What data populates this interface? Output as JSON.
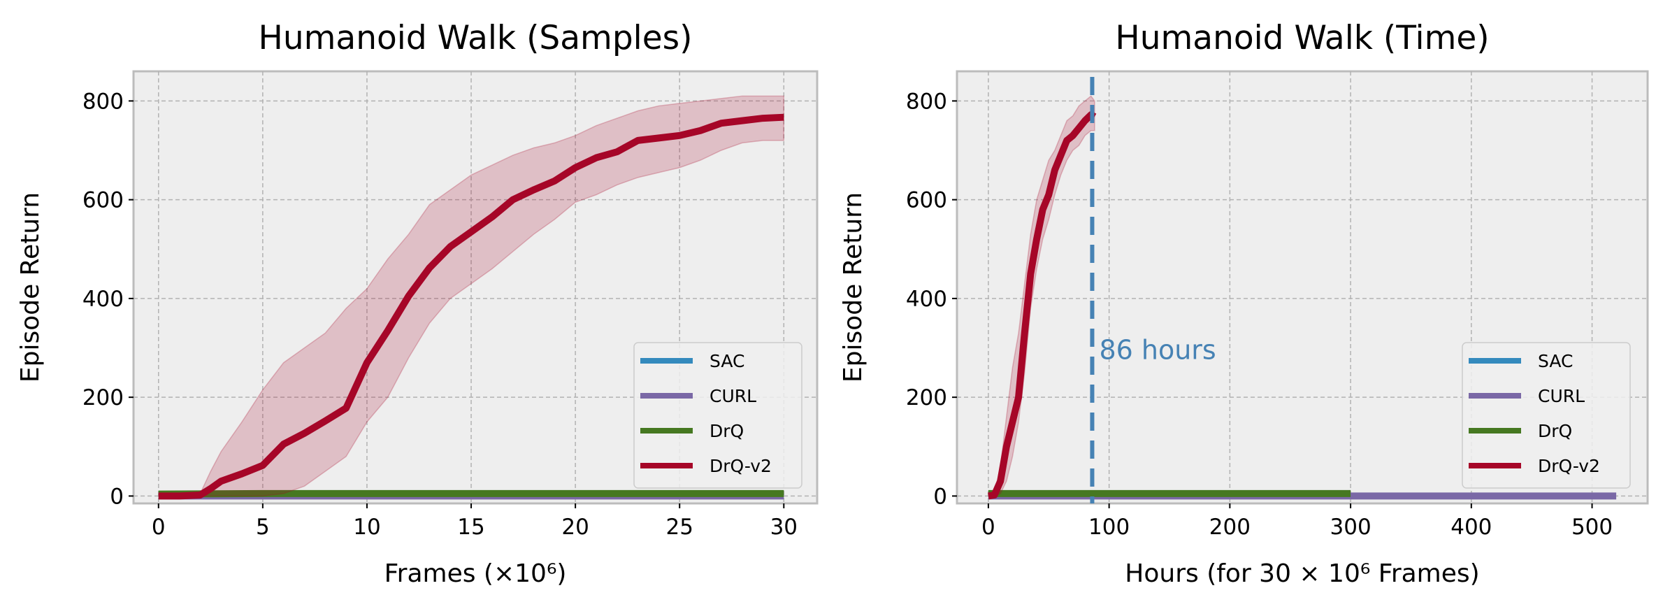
{
  "chart_data": [
    {
      "type": "line",
      "title": "Humanoid Walk (Samples)",
      "xlabel": "Frames (×10⁶)",
      "ylabel": "Episode Return",
      "xlim": [
        -1.2,
        31.6
      ],
      "ylim": [
        -15,
        860
      ],
      "xticks": [
        0,
        5,
        10,
        15,
        20,
        25,
        30
      ],
      "yticks": [
        0,
        200,
        400,
        600,
        800
      ],
      "grid": true,
      "legend_position": "lower-right",
      "legend": [
        "SAC",
        "CURL",
        "DrQ",
        "DrQ-v2"
      ],
      "series": [
        {
          "name": "SAC",
          "color": "#348ABD",
          "x": [],
          "y": []
        },
        {
          "name": "CURL",
          "color": "#7A68A6",
          "x": [
            0,
            30
          ],
          "y": [
            0,
            0
          ]
        },
        {
          "name": "DrQ",
          "color": "#467821",
          "x": [
            0,
            5,
            10,
            15,
            20,
            25,
            30
          ],
          "y": [
            4,
            5,
            5,
            5,
            5,
            5,
            5
          ]
        },
        {
          "name": "DrQ-v2",
          "color": "#A60628",
          "x": [
            0,
            1,
            2,
            2.5,
            3,
            4,
            5,
            6,
            7,
            8,
            9,
            10,
            11,
            12,
            13,
            14,
            15,
            16,
            17,
            18,
            19,
            20,
            21,
            22,
            23,
            24,
            25,
            26,
            27,
            28,
            29,
            30
          ],
          "y": [
            0,
            0,
            2,
            15,
            30,
            45,
            62,
            105,
            127,
            152,
            178,
            270,
            335,
            405,
            462,
            505,
            535,
            565,
            600,
            620,
            638,
            665,
            685,
            697,
            720,
            725,
            730,
            740,
            755,
            760,
            765,
            767
          ],
          "upper": [
            2,
            2,
            5,
            50,
            90,
            150,
            215,
            270,
            300,
            330,
            380,
            420,
            480,
            530,
            590,
            620,
            650,
            670,
            690,
            705,
            715,
            730,
            750,
            765,
            780,
            790,
            795,
            800,
            805,
            810,
            810,
            810
          ],
          "lower": [
            0,
            0,
            0,
            0,
            0,
            0,
            0,
            5,
            20,
            50,
            80,
            150,
            200,
            280,
            350,
            400,
            430,
            460,
            495,
            530,
            560,
            595,
            610,
            630,
            645,
            655,
            665,
            680,
            700,
            715,
            720,
            720
          ]
        }
      ]
    },
    {
      "type": "line",
      "title": "Humanoid Walk (Time)",
      "xlabel": "Hours (for 30 × 10⁶ Frames)",
      "ylabel": "Episode Return",
      "xlim": [
        -26,
        546
      ],
      "ylim": [
        -15,
        860
      ],
      "xticks": [
        0,
        100,
        200,
        300,
        400,
        500
      ],
      "yticks": [
        0,
        200,
        400,
        600,
        800
      ],
      "grid": true,
      "legend_position": "lower-right",
      "legend": [
        "SAC",
        "CURL",
        "DrQ",
        "DrQ-v2"
      ],
      "annotation": {
        "text": "86 hours",
        "x": 86,
        "color": "#4682B4"
      },
      "series": [
        {
          "name": "SAC",
          "color": "#348ABD",
          "x": [],
          "y": []
        },
        {
          "name": "CURL",
          "color": "#7A68A6",
          "x": [
            0,
            520
          ],
          "y": [
            0,
            0
          ]
        },
        {
          "name": "DrQ",
          "color": "#467821",
          "x": [
            0,
            100,
            200,
            300
          ],
          "y": [
            5,
            5,
            5,
            5
          ]
        },
        {
          "name": "DrQ-v2",
          "color": "#A60628",
          "x": [
            0,
            5,
            10,
            15,
            20,
            25,
            30,
            35,
            40,
            45,
            50,
            55,
            60,
            65,
            70,
            75,
            80,
            85,
            88
          ],
          "y": [
            0,
            2,
            30,
            100,
            150,
            200,
            330,
            450,
            520,
            580,
            610,
            660,
            690,
            720,
            730,
            745,
            760,
            772,
            768
          ],
          "upper": [
            2,
            5,
            60,
            160,
            260,
            330,
            430,
            530,
            600,
            640,
            680,
            700,
            730,
            760,
            770,
            790,
            800,
            810,
            800
          ],
          "lower": [
            0,
            0,
            5,
            30,
            80,
            150,
            250,
            380,
            460,
            520,
            560,
            610,
            650,
            680,
            700,
            710,
            730,
            740,
            740
          ]
        }
      ]
    }
  ]
}
